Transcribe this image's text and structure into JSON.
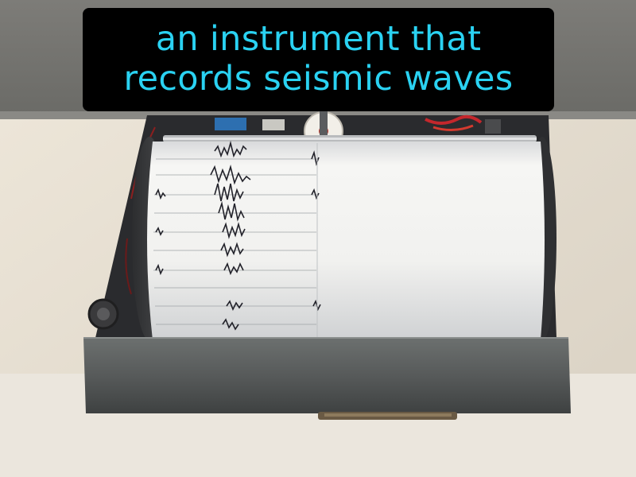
{
  "caption": {
    "line1": "an instrument that",
    "line2": "records seismic waves",
    "text_color": "#2ad2f2",
    "background_color": "#000000"
  },
  "photo": {
    "subject": "seismograph-drum-recorder",
    "colors": {
      "wall": "#e7e0d4",
      "housing": "#585c5b",
      "drum_paper": "#f3f3f1",
      "trace": "#22222a"
    }
  }
}
